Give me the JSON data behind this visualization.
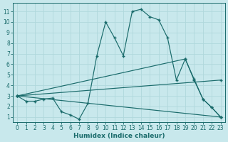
{
  "xlabel": "Humidex (Indice chaleur)",
  "bg_color": "#c8e8ec",
  "line_color": "#1a6b6b",
  "grid_color": "#b0d8dc",
  "xlim": [
    -0.5,
    23.5
  ],
  "ylim": [
    0.5,
    11.8
  ],
  "xticks": [
    0,
    1,
    2,
    3,
    4,
    5,
    6,
    7,
    8,
    9,
    10,
    11,
    12,
    13,
    14,
    15,
    16,
    17,
    18,
    19,
    20,
    21,
    22,
    23
  ],
  "yticks": [
    1,
    2,
    3,
    4,
    5,
    6,
    7,
    8,
    9,
    10,
    11
  ],
  "lines": [
    {
      "x": [
        0,
        1,
        2,
        3,
        4,
        5,
        6,
        7,
        8,
        9,
        10,
        11,
        12,
        13,
        14,
        15,
        16,
        17,
        18,
        19,
        20,
        21,
        22,
        23
      ],
      "y": [
        3,
        2.5,
        2.5,
        2.7,
        2.8,
        1.5,
        1.2,
        0.8,
        2.3,
        6.8,
        10.0,
        8.5,
        6.8,
        11.0,
        11.2,
        10.5,
        10.2,
        8.5,
        4.5,
        6.5,
        4.5,
        2.7,
        1.9,
        1.0
      ]
    },
    {
      "x": [
        0,
        19,
        20,
        21,
        22,
        23
      ],
      "y": [
        3.0,
        6.5,
        4.6,
        2.7,
        1.9,
        1.0
      ]
    },
    {
      "x": [
        0,
        23
      ],
      "y": [
        3.0,
        4.5
      ]
    },
    {
      "x": [
        0,
        23
      ],
      "y": [
        3.0,
        1.0
      ]
    }
  ]
}
